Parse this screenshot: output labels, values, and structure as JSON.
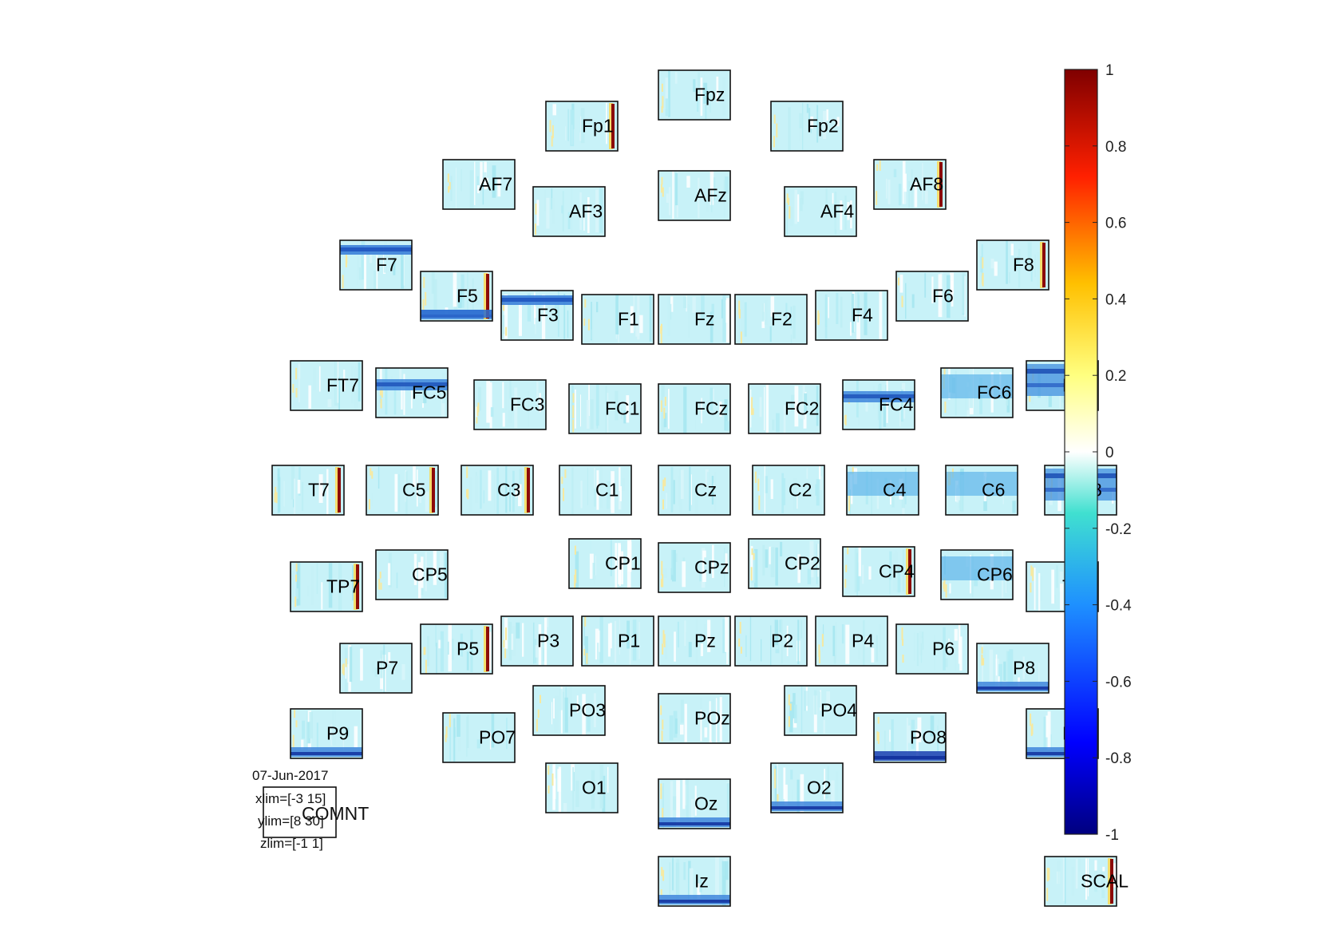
{
  "chart_data": {
    "type": "heatmap",
    "description_layout": "topographic grid of time-frequency maps, one per EEG channel",
    "channels": [
      {
        "name": "Fpz",
        "row": 0,
        "col": 6,
        "pattern": "light"
      },
      {
        "name": "Fp1",
        "row": 0.4,
        "col": 4.75,
        "pattern": "edge-red"
      },
      {
        "name": "Fp2",
        "row": 0.4,
        "col": 7.25,
        "pattern": "light"
      },
      {
        "name": "AF7",
        "row": 1.15,
        "col": 3.6,
        "pattern": "light"
      },
      {
        "name": "AF3",
        "row": 1.5,
        "col": 4.6,
        "pattern": "light"
      },
      {
        "name": "AFz",
        "row": 1.3,
        "col": 6,
        "pattern": "light"
      },
      {
        "name": "AF4",
        "row": 1.5,
        "col": 7.4,
        "pattern": "light"
      },
      {
        "name": "AF8",
        "row": 1.15,
        "col": 8.4,
        "pattern": "edge-red"
      },
      {
        "name": "F7",
        "row": 2.2,
        "col": 2.45,
        "pattern": "blue-band-top"
      },
      {
        "name": "F5",
        "row": 2.6,
        "col": 3.35,
        "pattern": "edge-red-blue-bottom"
      },
      {
        "name": "F3",
        "row": 2.85,
        "col": 4.25,
        "pattern": "blue-band-top"
      },
      {
        "name": "F1",
        "row": 2.9,
        "col": 5.15,
        "pattern": "light"
      },
      {
        "name": "Fz",
        "row": 2.9,
        "col": 6,
        "pattern": "light"
      },
      {
        "name": "F2",
        "row": 2.9,
        "col": 6.85,
        "pattern": "light"
      },
      {
        "name": "F4",
        "row": 2.85,
        "col": 7.75,
        "pattern": "light"
      },
      {
        "name": "F6",
        "row": 2.6,
        "col": 8.65,
        "pattern": "light"
      },
      {
        "name": "F8",
        "row": 2.2,
        "col": 9.55,
        "pattern": "edge-red"
      },
      {
        "name": "FT7",
        "row": 3.75,
        "col": 1.9,
        "pattern": "light"
      },
      {
        "name": "FC5",
        "row": 3.85,
        "col": 2.85,
        "pattern": "blue-band-mid"
      },
      {
        "name": "FC3",
        "row": 4.0,
        "col": 3.95,
        "pattern": "light"
      },
      {
        "name": "FC1",
        "row": 4.05,
        "col": 5.0,
        "pattern": "light"
      },
      {
        "name": "FCz",
        "row": 4.05,
        "col": 6,
        "pattern": "light"
      },
      {
        "name": "FC2",
        "row": 4.05,
        "col": 7.0,
        "pattern": "light"
      },
      {
        "name": "FC4",
        "row": 4.0,
        "col": 8.05,
        "pattern": "blue-band-mid"
      },
      {
        "name": "FC6",
        "row": 3.85,
        "col": 9.15,
        "pattern": "blue-mid"
      },
      {
        "name": "FT8",
        "row": 3.75,
        "col": 10.1,
        "pattern": "blue-strong"
      },
      {
        "name": "T7",
        "row": 5.1,
        "col": 1.7,
        "pattern": "edge-red"
      },
      {
        "name": "C5",
        "row": 5.1,
        "col": 2.75,
        "pattern": "edge-red"
      },
      {
        "name": "C3",
        "row": 5.1,
        "col": 3.8,
        "pattern": "edge-red"
      },
      {
        "name": "C1",
        "row": 5.1,
        "col": 4.9,
        "pattern": "light"
      },
      {
        "name": "Cz",
        "row": 5.1,
        "col": 6,
        "pattern": "light"
      },
      {
        "name": "C2",
        "row": 5.1,
        "col": 7.05,
        "pattern": "light"
      },
      {
        "name": "C4",
        "row": 5.1,
        "col": 8.1,
        "pattern": "blue-mid"
      },
      {
        "name": "C6",
        "row": 5.1,
        "col": 9.2,
        "pattern": "blue-mid"
      },
      {
        "name": "T8",
        "row": 5.1,
        "col": 10.3,
        "pattern": "blue-strong"
      },
      {
        "name": "TP7",
        "row": 6.35,
        "col": 1.9,
        "pattern": "edge-red"
      },
      {
        "name": "CP5",
        "row": 6.2,
        "col": 2.85,
        "pattern": "light"
      },
      {
        "name": "CP1",
        "row": 6.05,
        "col": 5.0,
        "pattern": "light"
      },
      {
        "name": "CPz",
        "row": 6.1,
        "col": 6,
        "pattern": "light"
      },
      {
        "name": "CP2",
        "row": 6.05,
        "col": 7.0,
        "pattern": "light"
      },
      {
        "name": "CP4",
        "row": 6.15,
        "col": 8.05,
        "pattern": "edge-red"
      },
      {
        "name": "CP6",
        "row": 6.2,
        "col": 9.15,
        "pattern": "blue-mid"
      },
      {
        "name": "TP8",
        "row": 6.35,
        "col": 10.1,
        "pattern": "edge-red"
      },
      {
        "name": "P7",
        "row": 7.4,
        "col": 2.45,
        "pattern": "light"
      },
      {
        "name": "P5",
        "row": 7.15,
        "col": 3.35,
        "pattern": "edge-red"
      },
      {
        "name": "P3",
        "row": 7.05,
        "col": 4.25,
        "pattern": "light"
      },
      {
        "name": "P1",
        "row": 7.05,
        "col": 5.15,
        "pattern": "light"
      },
      {
        "name": "Pz",
        "row": 7.05,
        "col": 6,
        "pattern": "light"
      },
      {
        "name": "P2",
        "row": 7.05,
        "col": 6.85,
        "pattern": "light"
      },
      {
        "name": "P4",
        "row": 7.05,
        "col": 7.75,
        "pattern": "light"
      },
      {
        "name": "P6",
        "row": 7.15,
        "col": 8.65,
        "pattern": "light"
      },
      {
        "name": "P8",
        "row": 7.4,
        "col": 9.55,
        "pattern": "blue-bottom"
      },
      {
        "name": "P9",
        "row": 8.25,
        "col": 1.9,
        "pattern": "blue-bottom"
      },
      {
        "name": "PO7",
        "row": 8.3,
        "col": 3.6,
        "pattern": "light"
      },
      {
        "name": "PO3",
        "row": 7.95,
        "col": 4.6,
        "pattern": "light"
      },
      {
        "name": "POz",
        "row": 8.05,
        "col": 6,
        "pattern": "light"
      },
      {
        "name": "PO4",
        "row": 7.95,
        "col": 7.4,
        "pattern": "light"
      },
      {
        "name": "PO8",
        "row": 8.3,
        "col": 8.4,
        "pattern": "blue-bottom-strong"
      },
      {
        "name": "P10",
        "row": 8.25,
        "col": 10.1,
        "pattern": "blue-bottom"
      },
      {
        "name": "O1",
        "row": 8.95,
        "col": 4.75,
        "pattern": "light"
      },
      {
        "name": "Oz",
        "row": 9.15,
        "col": 6,
        "pattern": "blue-bottom"
      },
      {
        "name": "O2",
        "row": 8.95,
        "col": 7.25,
        "pattern": "blue-bottom"
      },
      {
        "name": "Iz",
        "row": 10.15,
        "col": 6,
        "pattern": "blue-bottom"
      },
      {
        "name": "SCAL",
        "row": 10.15,
        "col": 10.3,
        "pattern": "edge-red"
      }
    ],
    "colorbar": {
      "colormap": "jet",
      "min": -1,
      "max": 1,
      "ticks": [
        "1",
        "0.8",
        "0.6",
        "0.4",
        "0.2",
        "0",
        "-0.2",
        "-0.4",
        "-0.6",
        "-0.8",
        "-1"
      ]
    },
    "info": {
      "date": "07-Jun-2017",
      "xlim": "xlim=[-3 15]",
      "ylim": "ylim=[8 30]",
      "zlim": "zlim=[-1 1]",
      "comment": "COMNT"
    }
  }
}
